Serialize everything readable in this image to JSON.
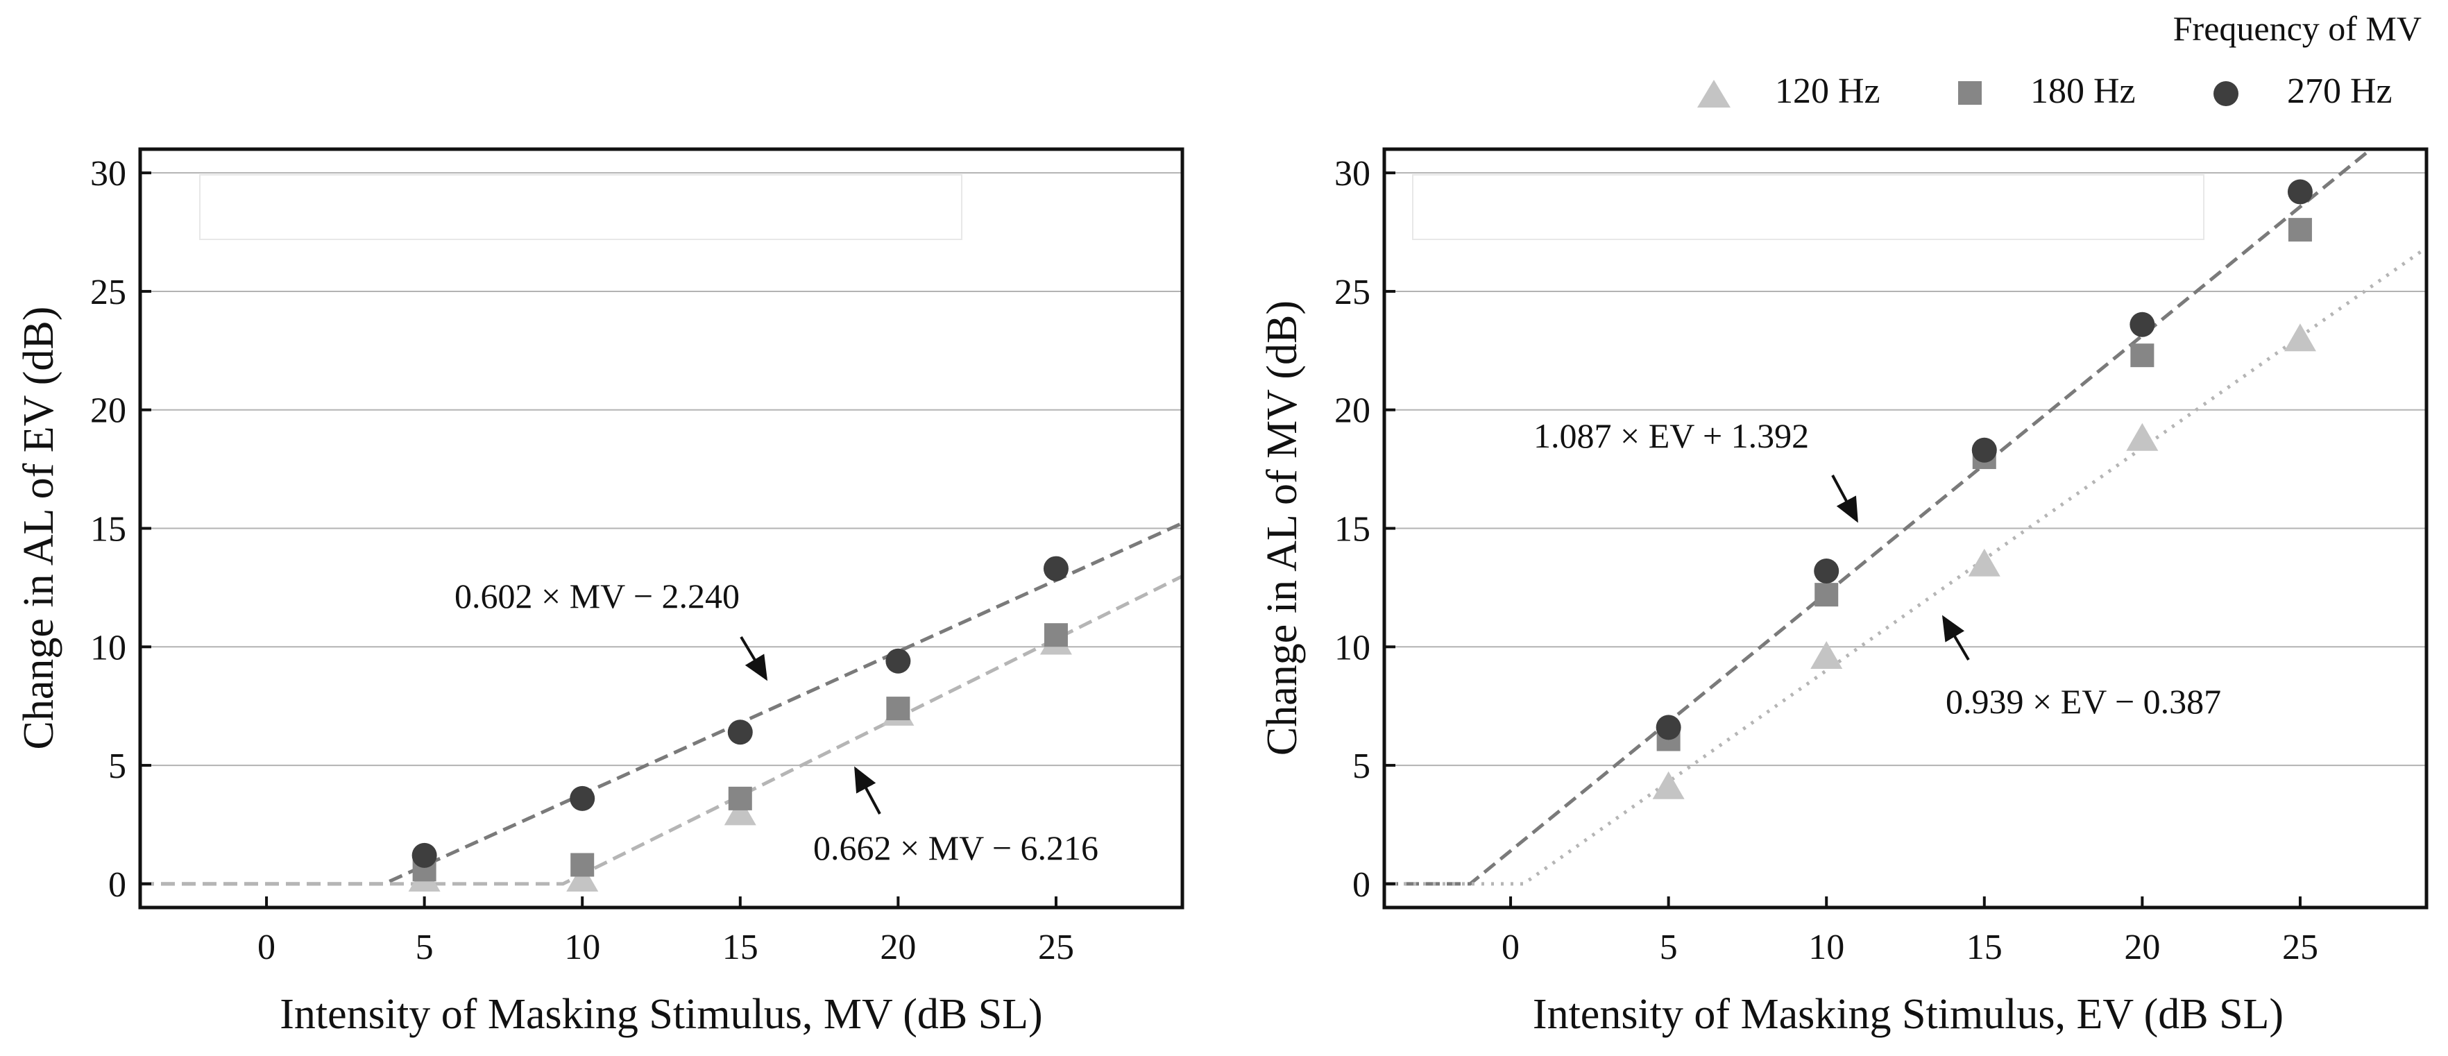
{
  "legend": {
    "title": "Frequency of MV",
    "items": [
      {
        "label": "120 Hz",
        "marker": "triangle",
        "color": "#c4c4c4"
      },
      {
        "label": "180 Hz",
        "marker": "square",
        "color": "#868686"
      },
      {
        "label": "270 Hz",
        "marker": "circle",
        "color": "#3e3e3e"
      }
    ]
  },
  "chart_data": [
    {
      "type": "scatter",
      "xlabel": "Intensity of Masking Stimulus, MV (dB SL)",
      "ylabel": "Change in AL of EV (dB)",
      "xlim": [
        -4,
        29
      ],
      "ylim": [
        -1,
        31
      ],
      "xticks": [
        0,
        5,
        10,
        15,
        20,
        25
      ],
      "yticks": [
        0,
        5,
        10,
        15,
        20,
        25,
        30
      ],
      "grid": "horizontal",
      "x": [
        5,
        10,
        15,
        20,
        25
      ],
      "series": [
        {
          "name": "120 Hz",
          "marker": "triangle",
          "values": [
            0.2,
            0.2,
            3.0,
            7.2,
            10.2
          ]
        },
        {
          "name": "180 Hz",
          "marker": "square",
          "values": [
            0.6,
            0.8,
            3.6,
            7.4,
            10.5
          ]
        },
        {
          "name": "270 Hz",
          "marker": "circle",
          "values": [
            1.2,
            3.6,
            6.4,
            9.4,
            13.3
          ]
        }
      ],
      "fits": [
        {
          "label": "0.602 × MV − 2.240",
          "slope": 0.602,
          "intercept": -2.24,
          "style": "dashed",
          "color": "#7a7a7a"
        },
        {
          "label": "0.662 × MV − 6.216",
          "slope": 0.662,
          "intercept": -6.216,
          "style": "dashed",
          "color": "#b5b5b5"
        }
      ]
    },
    {
      "type": "scatter",
      "xlabel": "Intensity of Masking Stimulus, EV (dB SL)",
      "ylabel": "Change in AL of MV (dB)",
      "xlim": [
        -4,
        29
      ],
      "ylim": [
        -1,
        31
      ],
      "xticks": [
        0,
        5,
        10,
        15,
        20,
        25
      ],
      "yticks": [
        0,
        5,
        10,
        15,
        20,
        25,
        30
      ],
      "grid": "horizontal",
      "x": [
        5,
        10,
        15,
        20,
        25
      ],
      "series": [
        {
          "name": "120 Hz",
          "marker": "triangle",
          "values": [
            4.1,
            9.6,
            13.5,
            18.8,
            23.0
          ]
        },
        {
          "name": "180 Hz",
          "marker": "square",
          "values": [
            6.1,
            12.2,
            18.0,
            22.3,
            27.6
          ]
        },
        {
          "name": "270 Hz",
          "marker": "circle",
          "values": [
            6.6,
            13.2,
            18.3,
            23.6,
            29.2
          ]
        }
      ],
      "fits": [
        {
          "label": "1.087 × EV + 1.392",
          "slope": 1.087,
          "intercept": 1.392,
          "style": "dashed",
          "color": "#7a7a7a"
        },
        {
          "label": "0.939 × EV − 0.387",
          "slope": 0.939,
          "intercept": -0.387,
          "style": "dotted",
          "color": "#b5b5b5"
        }
      ]
    }
  ]
}
